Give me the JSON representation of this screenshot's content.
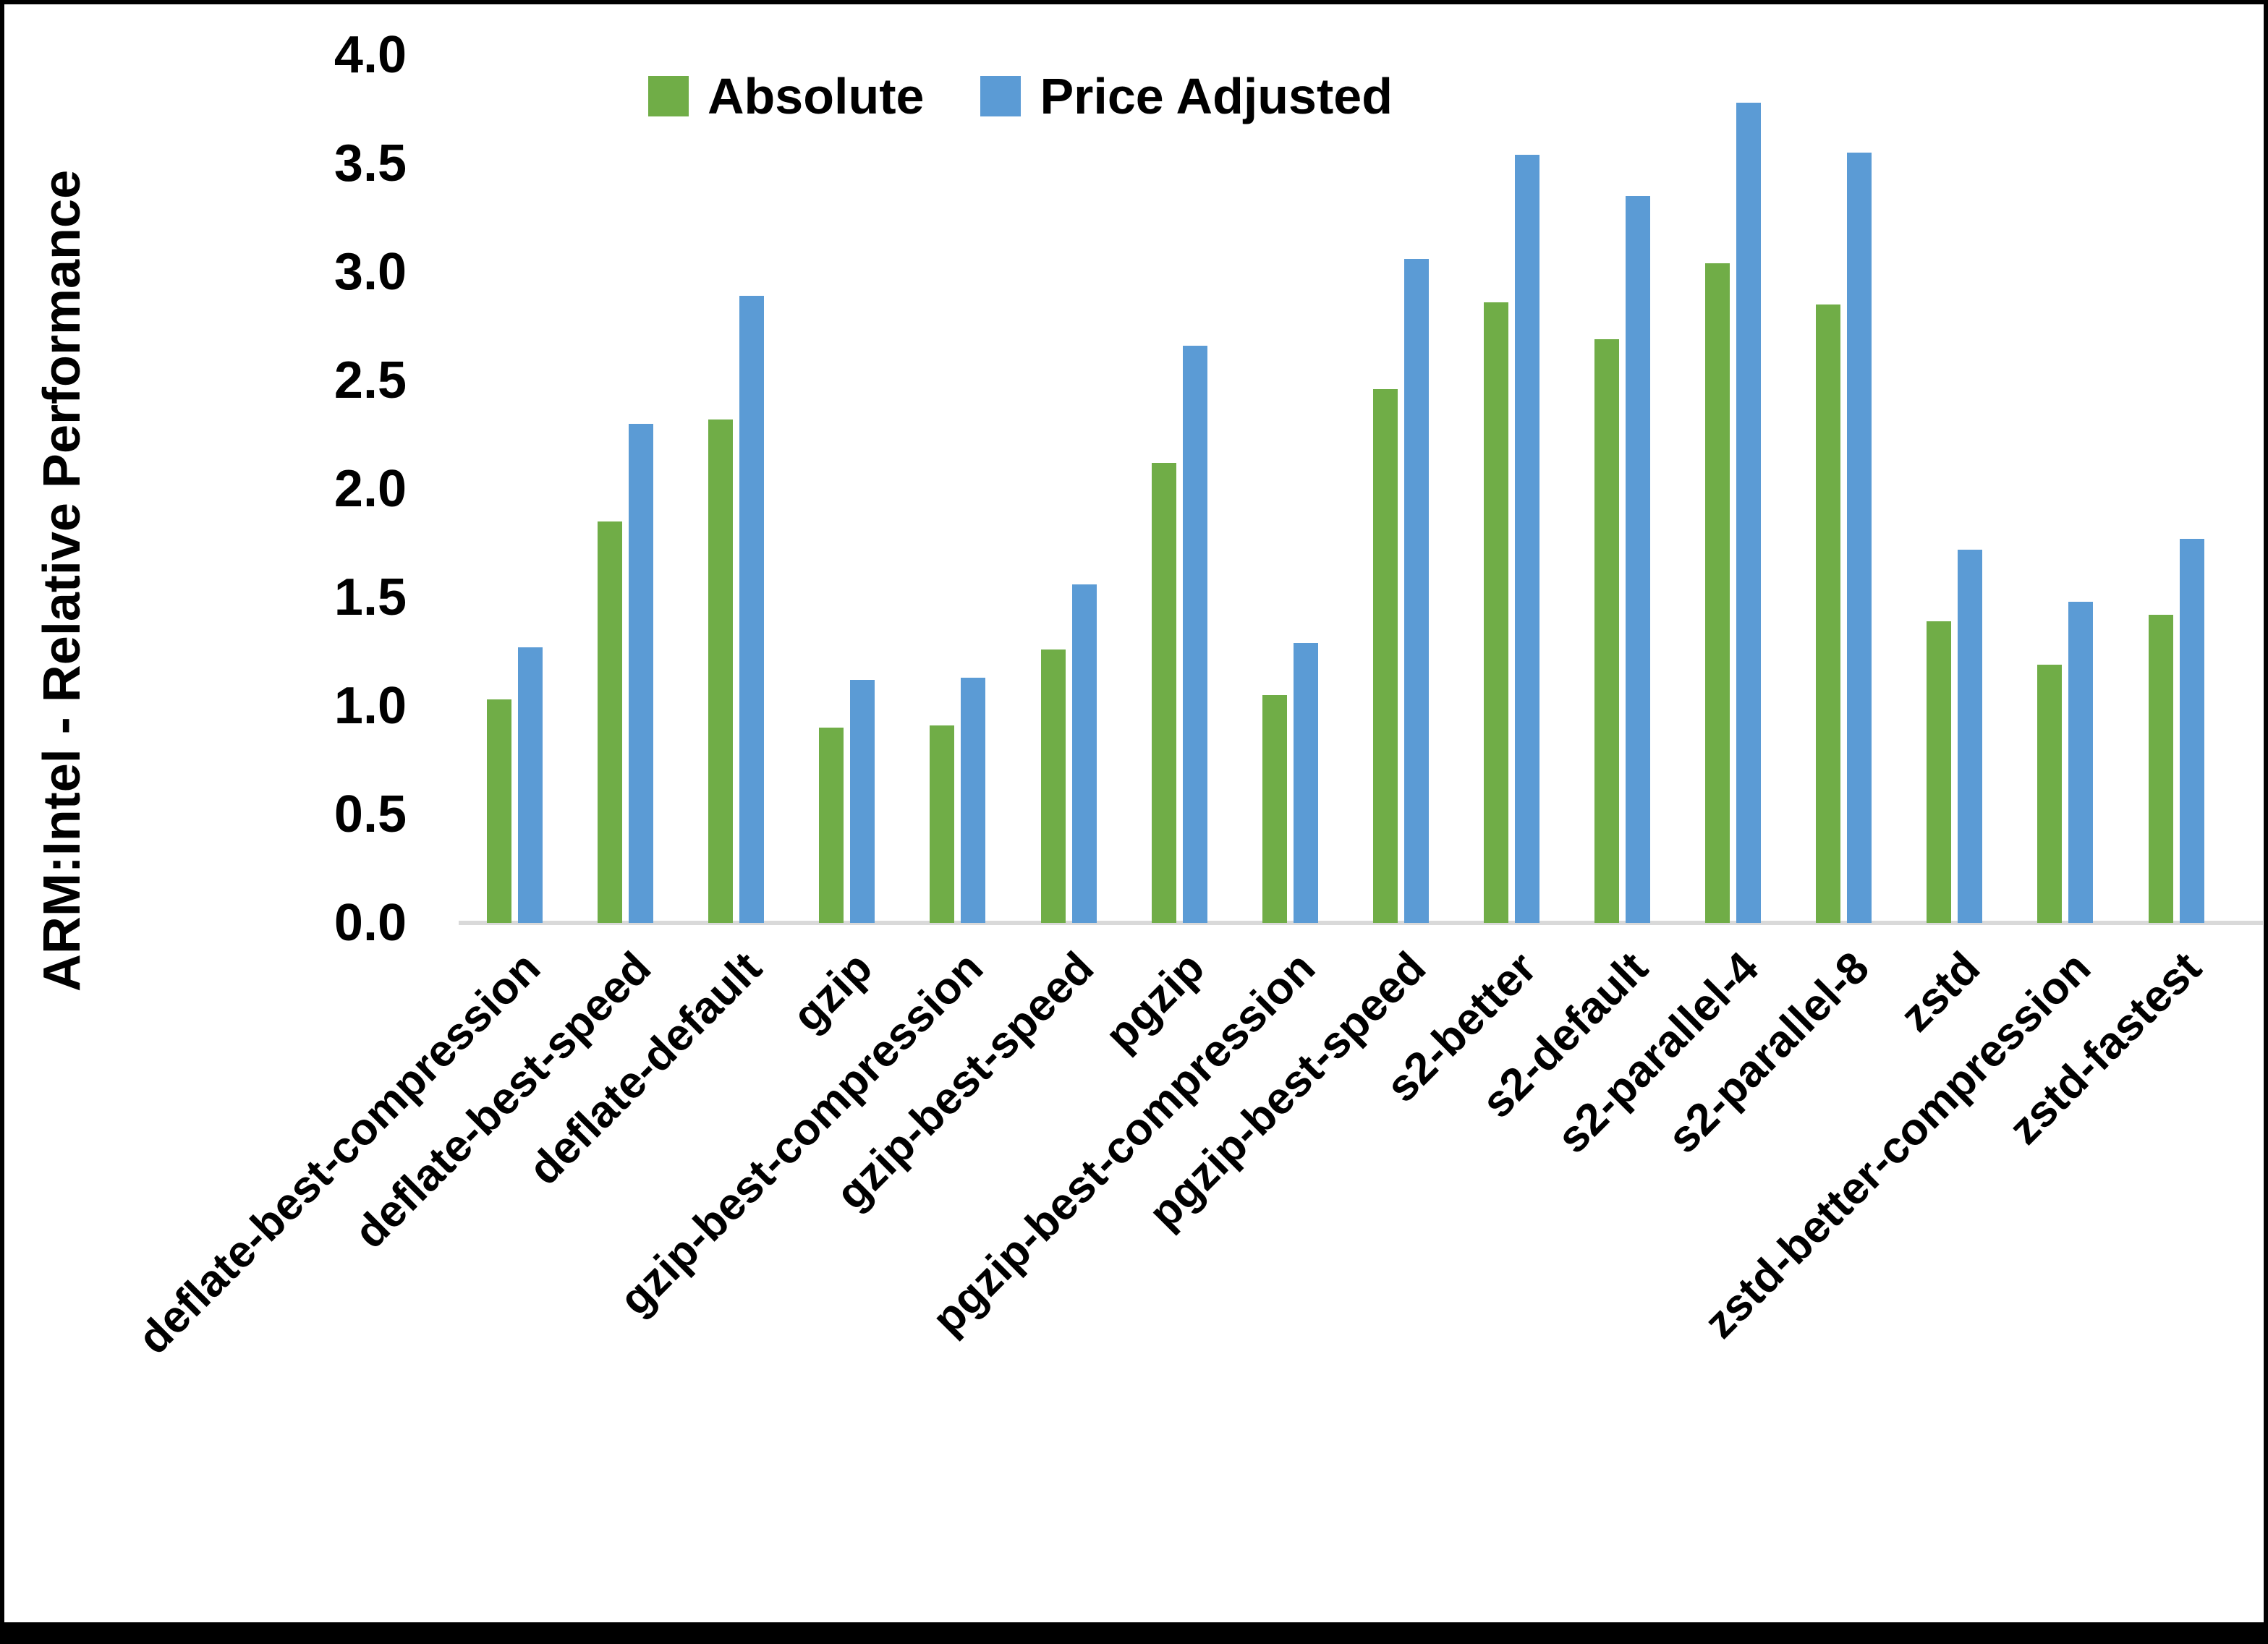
{
  "chart_data": {
    "type": "bar",
    "title": "",
    "ylabel": "ARM:Intel - Relative Performance",
    "xlabel": "",
    "categories": [
      "deflate-best-compression",
      "deflate-best-speed",
      "deflate-default",
      "gzip",
      "gzip-best-compression",
      "gzip-best-speed",
      "pgzip",
      "pgzip-best-compression",
      "pgzip-best-speed",
      "s2-better",
      "s2-default",
      "s2-parallel-4",
      "s2-parallel-8",
      "zstd",
      "zstd-better-compression",
      "zstd-fastest"
    ],
    "series": [
      {
        "name": "Absolute",
        "color": "#70AD47",
        "values": [
          1.03,
          1.85,
          2.32,
          0.9,
          0.91,
          1.26,
          2.12,
          1.05,
          2.46,
          2.86,
          2.69,
          3.04,
          2.85,
          1.39,
          1.19,
          1.42
        ]
      },
      {
        "name": "Price Adjusted",
        "color": "#5B9BD5",
        "values": [
          1.27,
          2.3,
          2.89,
          1.12,
          1.13,
          1.56,
          2.66,
          1.29,
          3.06,
          3.54,
          3.35,
          3.78,
          3.55,
          1.72,
          1.48,
          1.77
        ]
      }
    ],
    "ylim": [
      0.0,
      4.0
    ],
    "ytick_step": 0.5,
    "ytick_labels": [
      "0.0",
      "0.5",
      "1.0",
      "1.5",
      "2.0",
      "2.5",
      "3.0",
      "3.5",
      "4.0"
    ],
    "grid": "off",
    "legend_position": "top-center",
    "axis_line_color": "#d9d9d9",
    "text_color": "#000000"
  }
}
